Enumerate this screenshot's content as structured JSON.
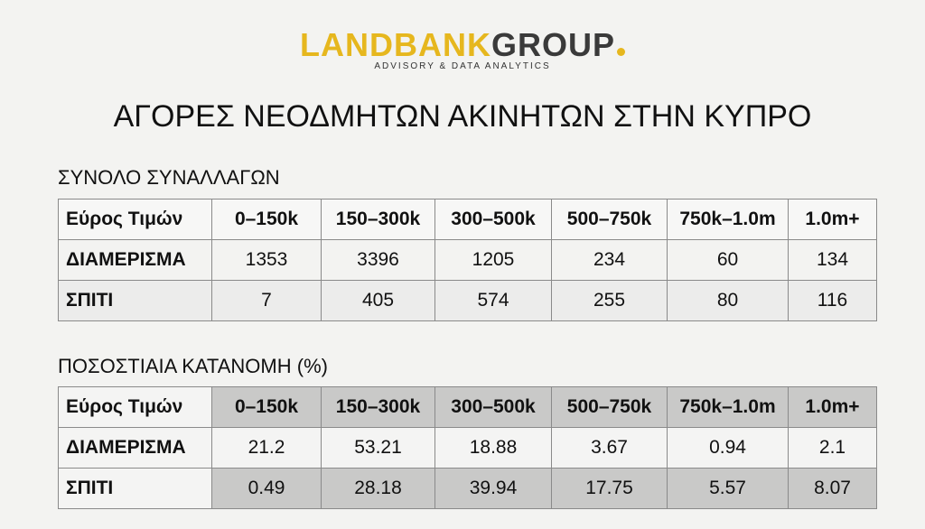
{
  "logo": {
    "brand": "LANDBANK",
    "group": "GROUP",
    "tagline": "ADVISORY & DATA ANALYTICS"
  },
  "title": "ΑΓΟΡΕΣ ΝΕΟΔΜΗΤΩΝ ΑΚΙΝΗΤΩΝ ΣΤΗΝ ΚΥΠΡΟ",
  "sections": [
    {
      "heading": "ΣΥΝΟΛΟ ΣΥΝΑΛΛΑΓΩΝ",
      "header": [
        "Εύρος Τιμών",
        "0–150k",
        "150–300k",
        "300–500k",
        "500–750k",
        "750k–1.0m",
        "1.0m+"
      ],
      "rows": [
        {
          "label": "ΔΙΑΜΕΡΙΣΜΑ",
          "values": [
            1353,
            3396,
            1205,
            234,
            60,
            134
          ]
        },
        {
          "label": "ΣΠΙΤΙ",
          "values": [
            7,
            405,
            574,
            255,
            80,
            116
          ]
        }
      ]
    },
    {
      "heading": "ΠΟΣΟΣΤΙΑΙΑ ΚΑΤΑΝΟΜΗ (%)",
      "header": [
        "Εύρος Τιμών",
        "0–150k",
        "150–300k",
        "300–500k",
        "500–750k",
        "750k–1.0m",
        "1.0m+"
      ],
      "rows": [
        {
          "label": "ΔΙΑΜΕΡΙΣΜΑ",
          "values": [
            21.2,
            53.21,
            18.88,
            3.67,
            0.94,
            2.1
          ]
        },
        {
          "label": "ΣΠΙΤΙ",
          "values": [
            0.49,
            28.18,
            39.94,
            17.75,
            5.57,
            8.07
          ]
        }
      ]
    }
  ]
}
